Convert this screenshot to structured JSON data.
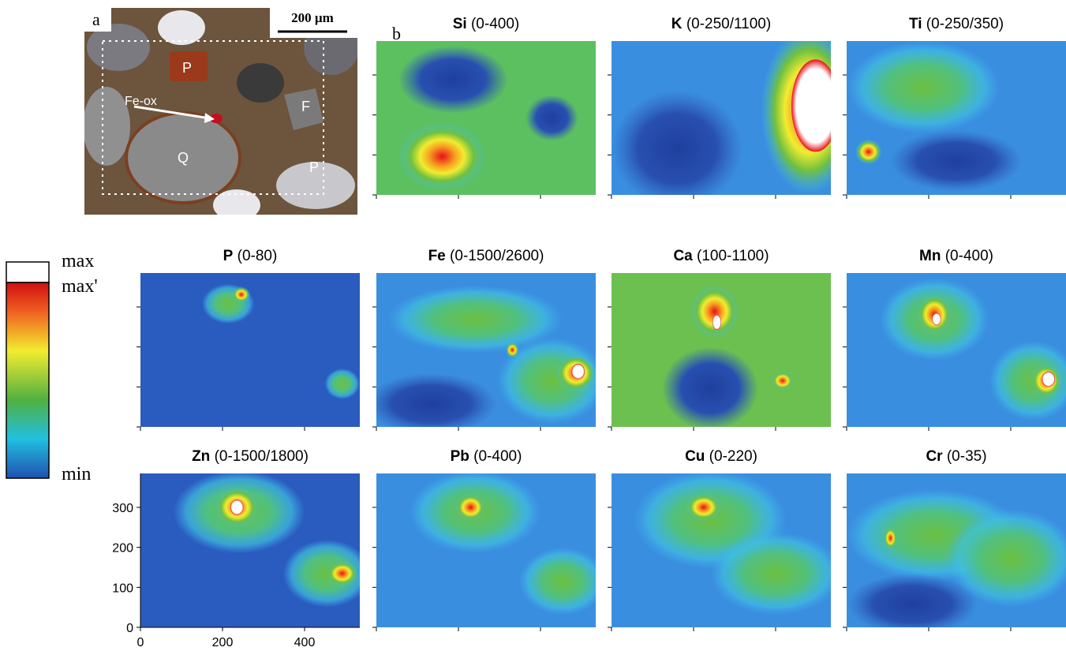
{
  "panel_a": {
    "label": "a",
    "scale_bar": "200 µm",
    "annotations": [
      "P",
      "Fe-ox",
      "F",
      "Q",
      "P"
    ]
  },
  "panel_b": {
    "label": "b"
  },
  "colorbar": {
    "max": "max",
    "max_prime": "max'",
    "min": "min"
  },
  "maps": [
    {
      "element": "Si",
      "range": "(0-400)"
    },
    {
      "element": "K",
      "range": "(0-250/1100)"
    },
    {
      "element": "Ti",
      "range": "(0-250/350)"
    },
    {
      "element": "P",
      "range": "(0-80)"
    },
    {
      "element": "Fe",
      "range": "(0-1500/2600)"
    },
    {
      "element": "Ca",
      "range": "(100-1100)"
    },
    {
      "element": "Mn",
      "range": "(0-400)"
    },
    {
      "element": "Zn",
      "range": "(0-1500/1800)"
    },
    {
      "element": "Pb",
      "range": "(0-400)"
    },
    {
      "element": "Cu",
      "range": "(0-220)"
    },
    {
      "element": "Cr",
      "range": "(0-35)"
    }
  ],
  "axes": {
    "yticks": [
      0,
      100,
      200,
      300
    ],
    "xticks": [
      0,
      200,
      400
    ]
  }
}
